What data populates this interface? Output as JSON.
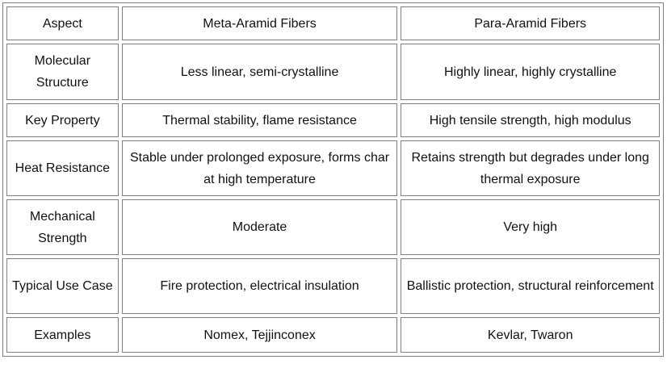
{
  "table": {
    "rows": [
      [
        "Aspect",
        "Meta-Aramid Fibers",
        "Para-Aramid Fibers"
      ],
      [
        "Molecular Structure",
        "Less linear, semi-crystalline",
        "Highly linear, highly crystalline"
      ],
      [
        "Key Property",
        "Thermal stability, flame resistance",
        "High tensile strength, high modulus"
      ],
      [
        "Heat Resistance",
        "Stable under prolonged exposure, forms char at high temperature",
        "Retains strength but degrades under long thermal exposure"
      ],
      [
        "Mechanical Strength",
        "Moderate",
        "Very high"
      ],
      [
        "Typical Use Case",
        "Fire protection, electrical insulation",
        "Ballistic protection, structural reinforcement"
      ],
      [
        "Examples",
        "Nomex, Tejjinconex",
        "Kevlar, Twaron"
      ]
    ]
  }
}
